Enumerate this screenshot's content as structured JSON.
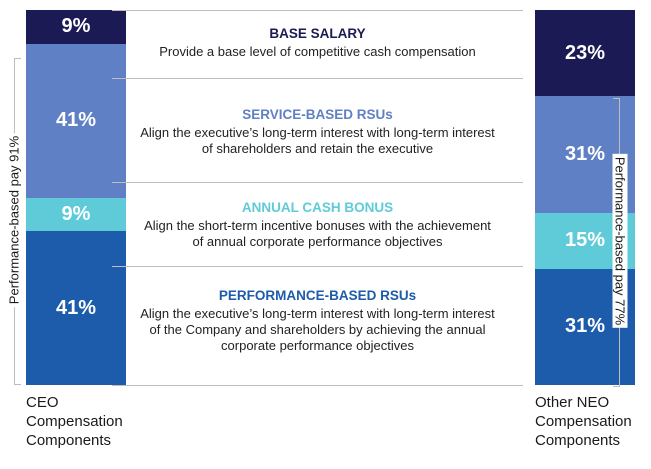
{
  "chart_data": {
    "type": "bar",
    "stacked": true,
    "components": [
      {
        "title": "BASE SALARY",
        "description_lines": [
          "Provide a base level of competitive cash compensation"
        ],
        "color": "#1b1a54",
        "title_color": "#1b1a54"
      },
      {
        "title": "SERVICE-BASED RSUs",
        "description_lines": [
          "Align the executive’s long-term interest with long-term interest",
          "of shareholders and retain the executive"
        ],
        "color": "#5f80c4",
        "title_color": "#5f80c4"
      },
      {
        "title": "ANNUAL CASH BONUS",
        "description_lines": [
          "Align the short-term incentive bonuses with the achievement",
          "of annual corporate performance objectives"
        ],
        "color": "#5fcbd9",
        "title_color": "#5fcbd9"
      },
      {
        "title": "PERFORMANCE-BASED RSUs",
        "description_lines": [
          "Align the executive’s long-term interest with long-term interest",
          "of the Company and shareholders by achieving the annual",
          "corporate performance objectives"
        ],
        "color": "#1d5bab",
        "title_color": "#1d5bab"
      }
    ],
    "series": [
      {
        "values": [
          9,
          41,
          9,
          41
        ],
        "labels": [
          "9%",
          "41%",
          "9%",
          "41%"
        ],
        "caption_lines": [
          "CEO",
          "Compensation",
          "Components"
        ],
        "performance_label": "Performance-based pay 91%"
      },
      {
        "values": [
          23,
          31,
          15,
          31
        ],
        "labels": [
          "23%",
          "31%",
          "15%",
          "31%"
        ],
        "caption_lines": [
          "Other NEO",
          "Compensation",
          "Components"
        ],
        "performance_label": "Performance-based pay 77%"
      }
    ]
  }
}
